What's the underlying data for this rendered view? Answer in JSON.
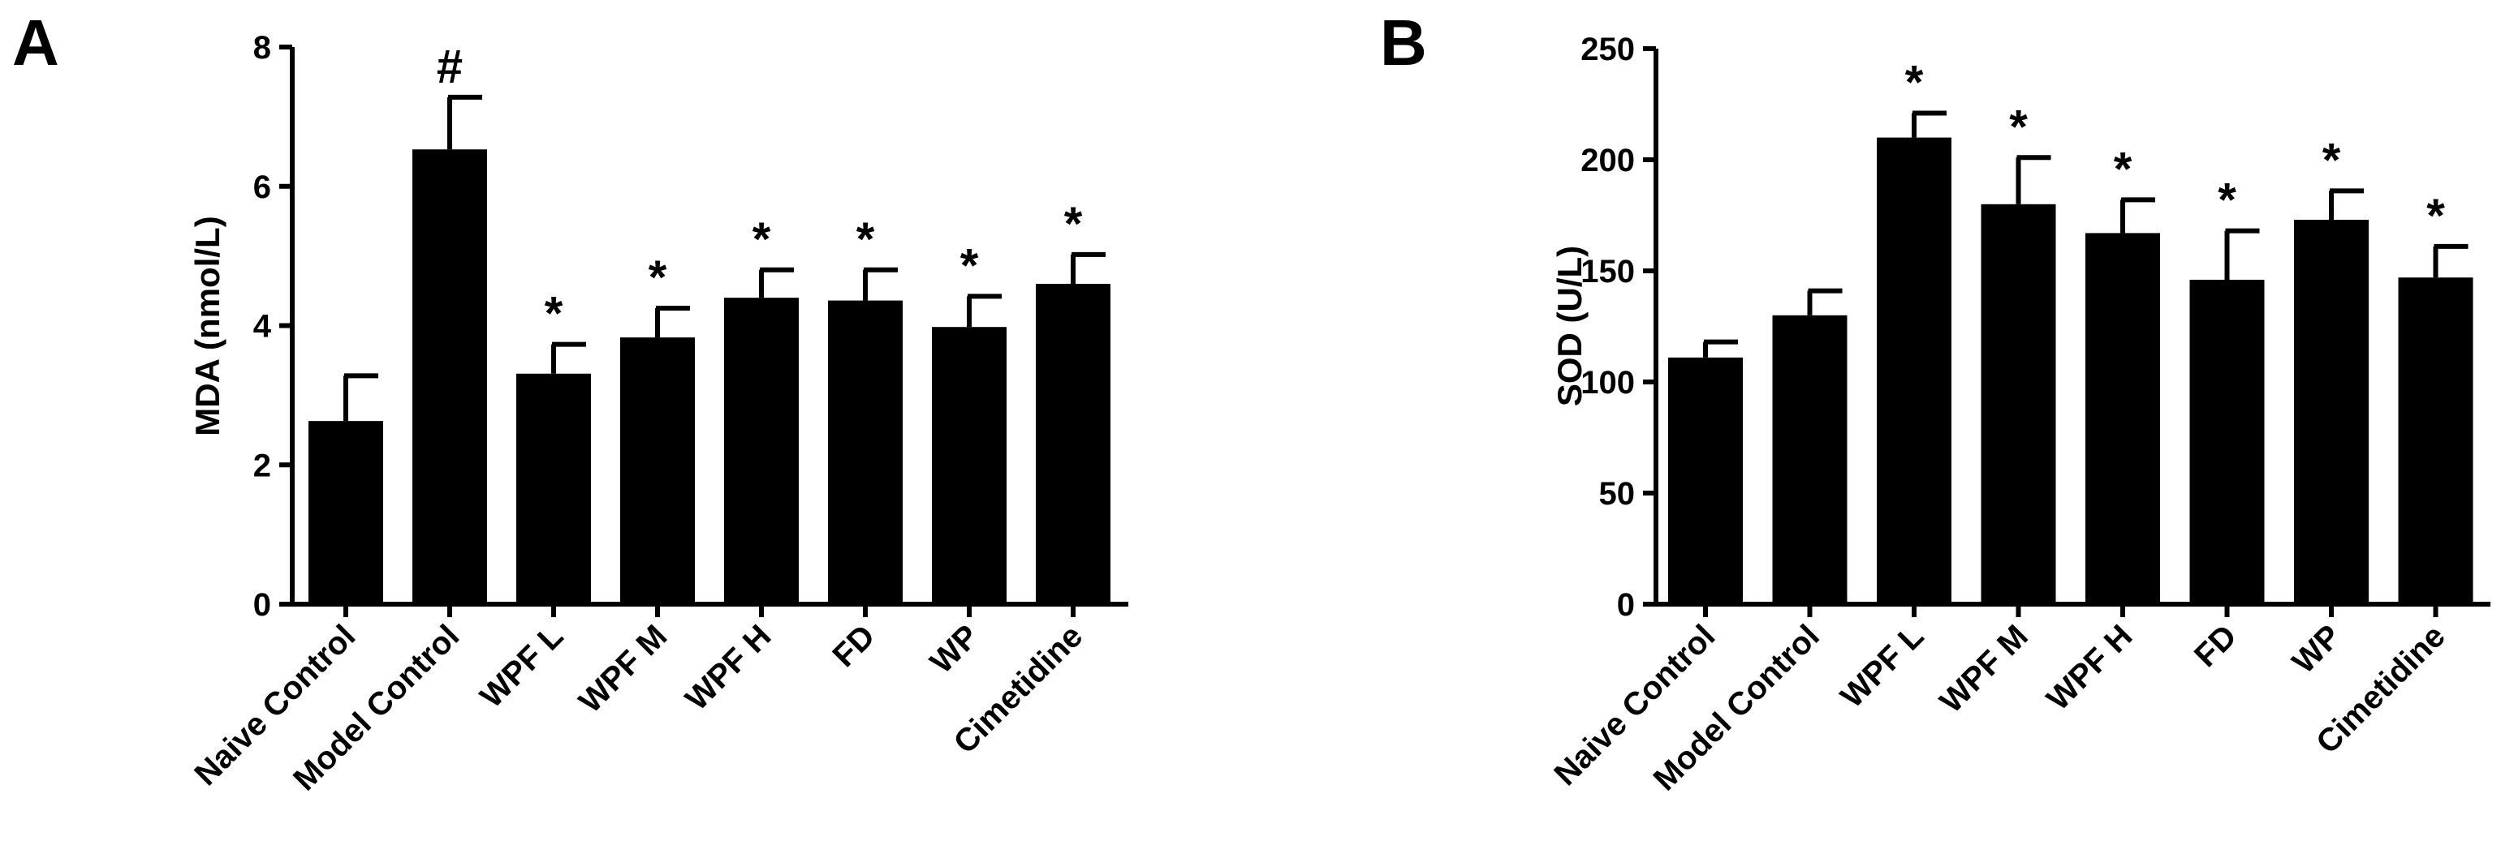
{
  "chart_data": [
    {
      "type": "bar",
      "panel": "A",
      "title": "",
      "xlabel": "",
      "ylabel": "MDA (nmol/L)",
      "ylim": [
        0,
        8
      ],
      "yticks": [
        0,
        2,
        4,
        6,
        8
      ],
      "categories": [
        "Naive Control",
        "Model Control",
        "WPF L",
        "WPF M",
        "WPF H",
        "FD",
        "WP",
        "Cimetidine"
      ],
      "values": [
        2.63,
        6.53,
        3.31,
        3.83,
        4.4,
        4.36,
        3.98,
        4.6
      ],
      "errors": [
        0.65,
        0.75,
        0.42,
        0.42,
        0.4,
        0.44,
        0.44,
        0.42
      ],
      "significance": [
        "",
        "#",
        "*",
        "*",
        "*",
        "*",
        "*",
        "*"
      ]
    },
    {
      "type": "bar",
      "panel": "B",
      "title": "",
      "xlabel": "",
      "ylabel": "SOD (U/L)",
      "ylim": [
        0,
        250
      ],
      "yticks": [
        0,
        50,
        100,
        150,
        200,
        250
      ],
      "categories": [
        "Naive Control",
        "Model Control",
        "WPF L",
        "WPF M",
        "WPF H",
        "FD",
        "WP",
        "Cimetidine"
      ],
      "values": [
        111,
        130,
        210,
        180,
        167,
        146,
        173,
        147
      ],
      "errors": [
        7,
        11,
        11,
        21,
        15,
        22,
        13,
        14
      ],
      "significance": [
        "",
        "",
        "*",
        "*",
        "*",
        "*",
        "*",
        "*"
      ]
    }
  ]
}
